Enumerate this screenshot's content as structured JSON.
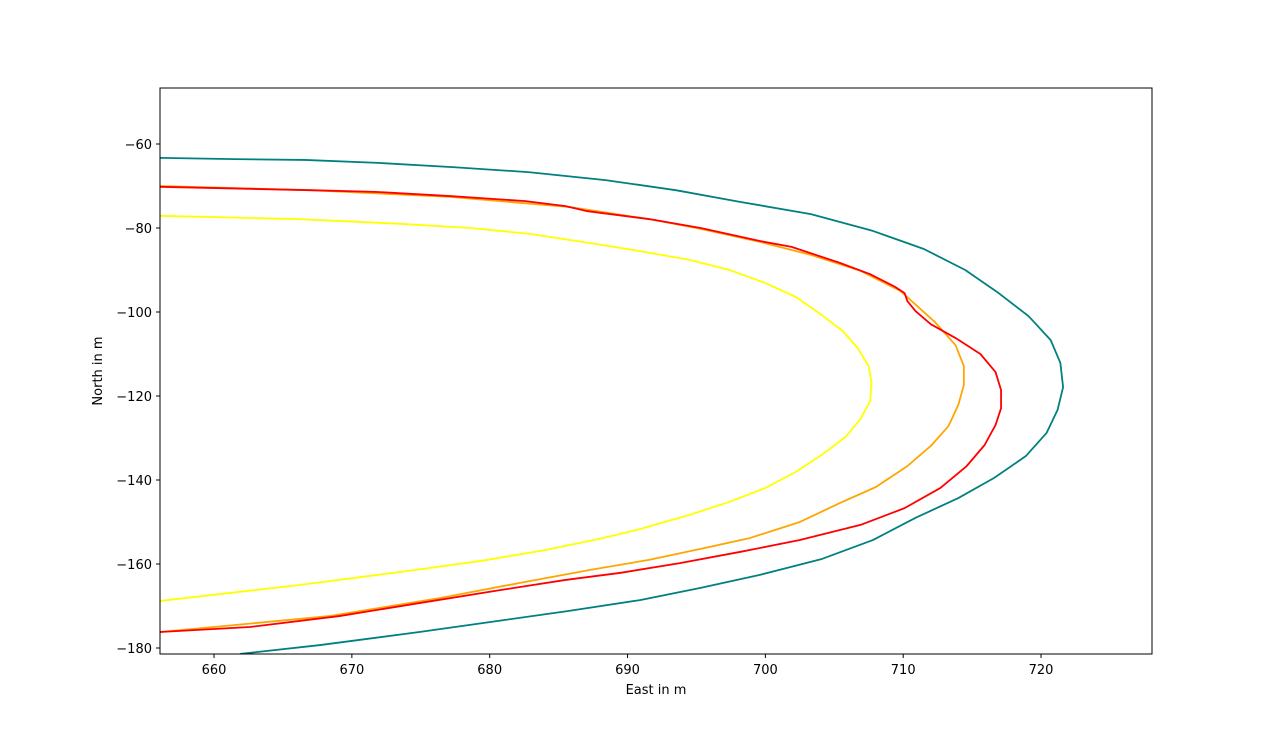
{
  "chart_data": {
    "type": "line",
    "xlabel": "East in m",
    "ylabel": "North in m",
    "xlim": [
      656.08,
      728.05
    ],
    "ylim": [
      -181.43,
      -46.67
    ],
    "xticks": [
      660,
      670,
      680,
      690,
      700,
      710,
      720
    ],
    "yticks": [
      {
        "value": -60,
        "label": "−60"
      },
      {
        "value": -80,
        "label": "−80"
      },
      {
        "value": -100,
        "label": "−100"
      },
      {
        "value": -120,
        "label": "−120"
      },
      {
        "value": -140,
        "label": "−140"
      },
      {
        "value": -160,
        "label": "−160"
      },
      {
        "value": -180,
        "label": "−180"
      }
    ],
    "series": [
      {
        "color": "#008080",
        "x": [
          656.08,
          661.5,
          666.6,
          671.9,
          677.3,
          682.8,
          688.4,
          693.5,
          698.2,
          703.3,
          707.8,
          711.5,
          714.5,
          716.8,
          719.1,
          720.7,
          721.4,
          721.6,
          721.2,
          720.4,
          718.9,
          716.6,
          714.0,
          710.9,
          707.8,
          704.1,
          699.6,
          695.3,
          690.9,
          685.7,
          680.5,
          674.9,
          667.7,
          661.9
        ],
        "values": [
          -63.3,
          -63.6,
          -63.8,
          -64.5,
          -65.5,
          -66.7,
          -68.6,
          -71.0,
          -73.8,
          -76.7,
          -80.7,
          -85.0,
          -90.0,
          -95.2,
          -101.0,
          -106.7,
          -112.1,
          -117.9,
          -123.3,
          -128.8,
          -134.3,
          -139.5,
          -144.3,
          -149.0,
          -154.3,
          -158.8,
          -162.6,
          -165.7,
          -168.6,
          -171.2,
          -173.6,
          -176.2,
          -179.3,
          -181.4
        ]
      },
      {
        "color": "#ffa500",
        "x": [
          656.08,
          667.0,
          677.1,
          685.8,
          691.6,
          695.3,
          699.6,
          703.3,
          706.9,
          709.8,
          712.3,
          713.8,
          714.4,
          714.4,
          714.0,
          713.3,
          712.0,
          710.3,
          708.0,
          705.4,
          702.5,
          698.9,
          695.3,
          691.6,
          687.3,
          682.2,
          676.4,
          668.4,
          656.08
        ],
        "values": [
          -70.0,
          -71.0,
          -72.6,
          -75.0,
          -77.9,
          -80.2,
          -83.3,
          -86.4,
          -90.2,
          -95.0,
          -102.4,
          -107.9,
          -112.9,
          -117.4,
          -122.1,
          -127.1,
          -131.9,
          -136.7,
          -141.7,
          -145.5,
          -150.0,
          -153.8,
          -156.4,
          -159.0,
          -161.4,
          -164.5,
          -168.1,
          -172.4,
          -176.2
        ]
      },
      {
        "color": "#ffff00",
        "x": [
          656.08,
          666.2,
          673.5,
          678.6,
          682.9,
          687.3,
          690.9,
          694.5,
          697.4,
          700.0,
          702.2,
          704.0,
          705.6,
          706.7,
          707.5,
          707.7,
          707.6,
          706.9,
          705.8,
          704.1,
          702.2,
          700.0,
          697.4,
          694.5,
          690.9,
          688.0,
          684.0,
          679.3,
          673.5,
          666.2,
          656.08
        ],
        "values": [
          -77.1,
          -77.9,
          -79.0,
          -80.0,
          -81.4,
          -83.6,
          -85.5,
          -87.6,
          -90.0,
          -93.1,
          -96.4,
          -100.5,
          -104.5,
          -108.6,
          -112.9,
          -116.9,
          -121.2,
          -125.5,
          -129.8,
          -134.0,
          -138.1,
          -141.9,
          -145.2,
          -148.3,
          -151.7,
          -154.0,
          -156.7,
          -159.3,
          -161.9,
          -165.0,
          -168.8
        ]
      },
      {
        "color": "#ff0000",
        "x": [
          656.08,
          667.0,
          671.7,
          677.1,
          682.6,
          685.5,
          687.1,
          691.6,
          695.3,
          699.6,
          701.9,
          705.4,
          707.6,
          709.4,
          710.1,
          710.3,
          710.9,
          712.0,
          713.8,
          715.6,
          716.7,
          717.1,
          717.1,
          716.7,
          715.9,
          714.6,
          712.7,
          710.1,
          706.9,
          702.5,
          698.2,
          693.8,
          689.5,
          685.5,
          680.8,
          674.9,
          669.1,
          662.6,
          656.08
        ],
        "values": [
          -70.2,
          -71.0,
          -71.4,
          -72.4,
          -73.6,
          -74.8,
          -76.0,
          -77.9,
          -80.0,
          -83.1,
          -84.5,
          -88.3,
          -91.0,
          -94.0,
          -95.5,
          -97.4,
          -99.8,
          -102.9,
          -106.2,
          -110.0,
          -114.3,
          -118.6,
          -122.9,
          -126.9,
          -131.7,
          -136.7,
          -141.9,
          -146.7,
          -150.7,
          -154.3,
          -157.1,
          -159.8,
          -162.1,
          -163.8,
          -166.2,
          -169.3,
          -172.4,
          -175.0,
          -176.2
        ]
      }
    ]
  }
}
